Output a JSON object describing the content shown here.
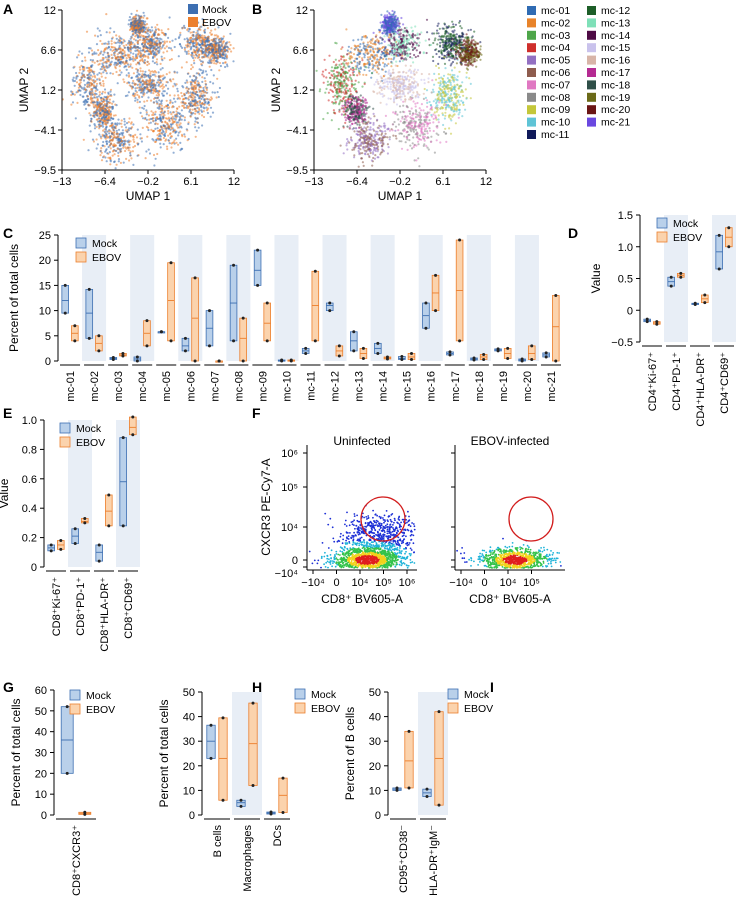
{
  "colors": {
    "mock": "#3d6fb2",
    "ebov": "#ec7f2d",
    "mock_box": "#b9d0ea",
    "ebov_box": "#fbd3ad",
    "shade": "#e8eef6"
  },
  "chart_data": [
    {
      "panel": "A",
      "type": "scatter",
      "xlabel": "UMAP 1",
      "ylabel": "UMAP 2",
      "xticks": [
        "−13",
        "−6.4",
        "−0.2",
        "6.1",
        "12"
      ],
      "yticks": [
        "12",
        "6.6",
        "1.2",
        "−4.1",
        "−9.5"
      ],
      "xlim": [
        -13,
        12
      ],
      "ylim": [
        -9.5,
        12
      ],
      "legend": [
        "Mock",
        "EBOV"
      ]
    },
    {
      "panel": "B",
      "type": "scatter",
      "xlabel": "UMAP 1",
      "ylabel": "UMAP 2",
      "xticks": [
        "−13",
        "−6.4",
        "−0.2",
        "6.1",
        "12"
      ],
      "yticks": [
        "12",
        "6.6",
        "1.2",
        "−4.1",
        "−9.5"
      ],
      "xlim": [
        -13,
        12
      ],
      "ylim": [
        -9.5,
        12
      ],
      "legend": [
        {
          "name": "mc-01",
          "color": "#2f6bb3"
        },
        {
          "name": "mc-02",
          "color": "#e8832a"
        },
        {
          "name": "mc-03",
          "color": "#4ea64a"
        },
        {
          "name": "mc-04",
          "color": "#cf2f2c"
        },
        {
          "name": "mc-05",
          "color": "#9370c2"
        },
        {
          "name": "mc-06",
          "color": "#8e5c4e"
        },
        {
          "name": "mc-07",
          "color": "#e078c2"
        },
        {
          "name": "mc-08",
          "color": "#8a8a8a"
        },
        {
          "name": "mc-09",
          "color": "#c4c73a"
        },
        {
          "name": "mc-10",
          "color": "#5fc4d6"
        },
        {
          "name": "mc-11",
          "color": "#101a5a"
        },
        {
          "name": "mc-12",
          "color": "#1d5e28"
        },
        {
          "name": "mc-13",
          "color": "#7fe0b8"
        },
        {
          "name": "mc-14",
          "color": "#4e0b45"
        },
        {
          "name": "mc-15",
          "color": "#c9c2ec"
        },
        {
          "name": "mc-16",
          "color": "#d8b5a8"
        },
        {
          "name": "mc-17",
          "color": "#b52a92"
        },
        {
          "name": "mc-18",
          "color": "#2f4f48"
        },
        {
          "name": "mc-19",
          "color": "#6b6a18"
        },
        {
          "name": "mc-20",
          "color": "#6a1515"
        },
        {
          "name": "mc-21",
          "color": "#6a48e0"
        }
      ]
    },
    {
      "panel": "C",
      "type": "box",
      "ylabel": "Percent of total cells",
      "ylim": [
        0,
        25
      ],
      "yticks": [
        0,
        5,
        10,
        15,
        20,
        25
      ],
      "categories": [
        "mc-01",
        "mc-02",
        "mc-03",
        "mc-04",
        "mc-05",
        "mc-06",
        "mc-07",
        "mc-08",
        "mc-09",
        "mc-10",
        "mc-11",
        "mc-12",
        "mc-13",
        "mc-14",
        "mc-15",
        "mc-16",
        "mc-17",
        "mc-18",
        "mc-19",
        "mc-20",
        "mc-21"
      ],
      "series": [
        {
          "name": "Mock",
          "boxes": [
            [
              9.5,
              12,
              15
            ],
            [
              4.5,
              9.5,
              14.2
            ],
            [
              0.3,
              0.5,
              0.7
            ],
            [
              0,
              0.4,
              0.8
            ],
            [
              5.8,
              5.8,
              5.8
            ],
            [
              2,
              3,
              4.5
            ],
            [
              3,
              6.5,
              10
            ],
            [
              4,
              11.5,
              19
            ],
            [
              15,
              18,
              22
            ],
            [
              0,
              0.1,
              0.2
            ],
            [
              1.5,
              2,
              2.5
            ],
            [
              10,
              11,
              11.5
            ],
            [
              2,
              4,
              5.8
            ],
            [
              1.5,
              2.5,
              3.5
            ],
            [
              0.3,
              0.5,
              0.9
            ],
            [
              6.5,
              9,
              11.5
            ],
            [
              1.2,
              1.5,
              1.8
            ],
            [
              0.2,
              0.4,
              0.6
            ],
            [
              2,
              2.2,
              2.4
            ],
            [
              0,
              0.2,
              0.4
            ],
            [
              0.8,
              1.2,
              1.6
            ]
          ]
        },
        {
          "name": "EBOV",
          "boxes": [
            [
              4,
              5.5,
              7
            ],
            [
              2,
              3.5,
              5
            ],
            [
              1,
              1.2,
              1.5
            ],
            [
              3,
              5.5,
              8
            ],
            [
              4,
              12,
              19.5
            ],
            [
              0,
              8.5,
              16.5
            ],
            [
              0,
              0,
              0
            ],
            [
              0,
              4.5,
              8.5
            ],
            [
              4,
              7.5,
              11.5
            ],
            [
              0,
              0.1,
              0.2
            ],
            [
              4,
              11,
              17.8
            ],
            [
              1,
              2,
              3
            ],
            [
              0.5,
              1.5,
              2.5
            ],
            [
              0.4,
              0.6,
              0.8
            ],
            [
              0.3,
              0.8,
              1.5
            ],
            [
              10,
              13.5,
              17
            ],
            [
              4,
              14,
              24
            ],
            [
              0.3,
              0.8,
              1.3
            ],
            [
              0.5,
              1.5,
              2.5
            ],
            [
              0.3,
              1.5,
              3
            ],
            [
              0,
              6.8,
              13
            ]
          ]
        }
      ]
    },
    {
      "panel": "D",
      "type": "box",
      "ylabel": "Value",
      "ylim": [
        -0.5,
        1.5
      ],
      "yticks": [
        "−0.5",
        "0",
        "0.5",
        "1.0",
        "1.5"
      ],
      "categories": [
        "CD4⁺Ki-67⁺",
        "CD4⁺PD-1⁺",
        "CD4⁺HLA-DR⁺",
        "CD4⁺CD69⁺"
      ],
      "series": [
        {
          "name": "Mock",
          "boxes": [
            [
              -0.18,
              -0.16,
              -0.14
            ],
            [
              0.38,
              0.45,
              0.52
            ],
            [
              0.09,
              0.1,
              0.11
            ],
            [
              0.65,
              0.92,
              1.18
            ]
          ]
        },
        {
          "name": "EBOV",
          "boxes": [
            [
              -0.22,
              -0.2,
              -0.18
            ],
            [
              0.52,
              0.55,
              0.58
            ],
            [
              0.12,
              0.18,
              0.24
            ],
            [
              1.0,
              1.15,
              1.3
            ]
          ]
        }
      ]
    },
    {
      "panel": "E",
      "type": "box",
      "ylabel": "Value",
      "ylim": [
        0,
        1.0
      ],
      "yticks": [
        "0",
        "0.2",
        "0.4",
        "0.6",
        "0.8",
        "1.0"
      ],
      "categories": [
        "CD8⁺Ki-67⁺",
        "CD8⁺PD-1⁺",
        "CD8⁺HLA-DR⁺",
        "CD8⁺CD69⁺"
      ],
      "series": [
        {
          "name": "Mock",
          "boxes": [
            [
              0.11,
              0.13,
              0.15
            ],
            [
              0.16,
              0.21,
              0.26
            ],
            [
              0.04,
              0.1,
              0.15
            ],
            [
              0.28,
              0.58,
              0.88
            ]
          ]
        },
        {
          "name": "EBOV",
          "boxes": [
            [
              0.12,
              0.15,
              0.18
            ],
            [
              0.3,
              0.31,
              0.33
            ],
            [
              0.28,
              0.38,
              0.49
            ],
            [
              0.9,
              0.95,
              1.02
            ]
          ]
        }
      ]
    },
    {
      "panel": "G",
      "type": "box",
      "ylabel": "Percent of total cells",
      "ylim": [
        0,
        60
      ],
      "yticks": [
        0,
        10,
        20,
        30,
        40,
        50,
        60
      ],
      "categories": [
        "CD8⁺CXCR3⁺"
      ],
      "series": [
        {
          "name": "Mock",
          "boxes": [
            [
              20,
              36,
              52
            ]
          ]
        },
        {
          "name": "EBOV",
          "boxes": [
            [
              0.3,
              0.8,
              1.3
            ]
          ]
        }
      ]
    },
    {
      "panel": "H",
      "type": "box",
      "ylabel": "Percent of total cells",
      "ylim": [
        0,
        50
      ],
      "yticks": [
        0,
        10,
        20,
        30,
        40,
        50
      ],
      "categories": [
        "B cells",
        "Macrophages",
        "DCs"
      ],
      "series": [
        {
          "name": "Mock",
          "boxes": [
            [
              23,
              30,
              36.5
            ],
            [
              3.5,
              5,
              6
            ],
            [
              0.4,
              0.8,
              1.2
            ]
          ]
        },
        {
          "name": "EBOV",
          "boxes": [
            [
              6,
              23,
              39.5
            ],
            [
              12,
              29,
              45.5
            ],
            [
              1,
              8,
              15
            ]
          ]
        }
      ]
    },
    {
      "panel": "I",
      "type": "box",
      "ylabel": "Percent of B cells",
      "ylim": [
        0,
        50
      ],
      "yticks": [
        0,
        10,
        20,
        30,
        40,
        50
      ],
      "categories": [
        "CD95⁺CD38⁻",
        "HLA-DR⁺IgM⁻"
      ],
      "series": [
        {
          "name": "Mock",
          "boxes": [
            [
              10,
              10.5,
              11
            ],
            [
              7.5,
              9,
              10.5
            ]
          ]
        },
        {
          "name": "EBOV",
          "boxes": [
            [
              11,
              22,
              34
            ],
            [
              4,
              23,
              42
            ]
          ]
        }
      ]
    }
  ],
  "flow": {
    "panel": "F",
    "ylabel": "CXCR3 PE-Cy7-A",
    "xlabel": "CD8⁺ BV605-A",
    "left_title": "Uninfected",
    "right_title": "EBOV-infected",
    "yticks": [
      "10⁶",
      "10⁵",
      "10⁴",
      "0",
      "−10⁴"
    ],
    "left_xticks": [
      "−10⁴",
      "0",
      "10⁴",
      "10⁵",
      "10⁶"
    ],
    "right_xticks": [
      "−10⁴",
      "0",
      "10⁴",
      "10⁵"
    ]
  }
}
